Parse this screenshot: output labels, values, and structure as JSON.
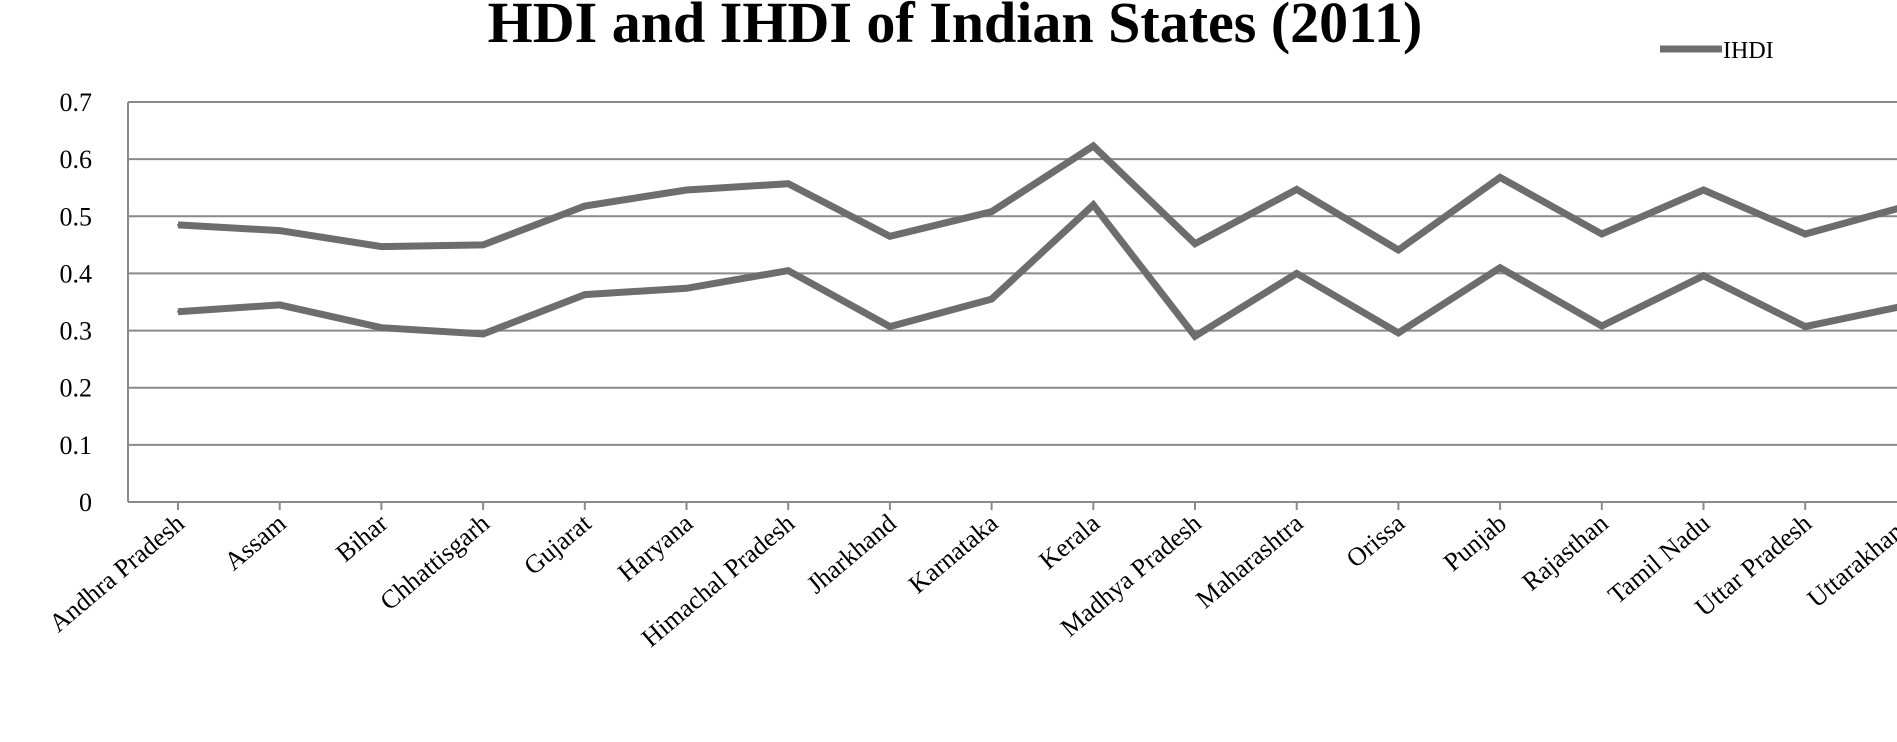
{
  "chart_data": {
    "type": "line",
    "title": "HDI and IHDI of Indian States (2011)",
    "xlabel": "",
    "ylabel": "",
    "ylim": [
      0,
      0.7
    ],
    "y_ticks": [
      "0",
      "0.1",
      "0.2",
      "0.3",
      "0.4",
      "0.5",
      "0.6",
      "0.7"
    ],
    "grid": true,
    "legend_position": "top-right",
    "line_color": "#6d6d6d",
    "categories": [
      "Andhra Pradesh",
      "Assam",
      "Bihar",
      "Chhattisgarh",
      "Gujarat",
      "Haryana",
      "Himachal Pradesh",
      "Jharkhand",
      "Karnataka",
      "Kerala",
      "Madhya Pradesh",
      "Maharashtra",
      "Orissa",
      "Punjab",
      "Rajasthan",
      "Tamil Nadu",
      "Uttar Pradesh",
      "Uttarakhand"
    ],
    "series": [
      {
        "values": [
          0.485,
          0.475,
          0.447,
          0.45,
          0.518,
          0.546,
          0.557,
          0.465,
          0.508,
          0.623,
          0.452,
          0.547,
          0.441,
          0.568,
          0.469,
          0.546,
          0.469,
          0.518
        ]
      },
      {
        "name": "IHDI",
        "values": [
          0.333,
          0.345,
          0.305,
          0.294,
          0.363,
          0.374,
          0.405,
          0.307,
          0.355,
          0.52,
          0.29,
          0.4,
          0.296,
          0.41,
          0.308,
          0.396,
          0.307,
          0.344
        ]
      }
    ]
  }
}
